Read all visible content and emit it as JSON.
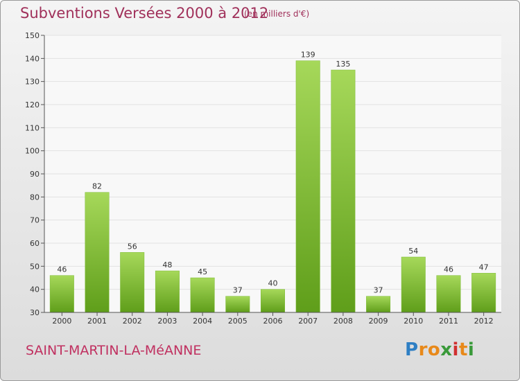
{
  "title": "Subventions Versées 2000 à 2012",
  "unit_note": "(en milliers d'€)",
  "commune": "SAINT-MARTIN-LA-MéANNE",
  "brand": {
    "letters": [
      "P",
      "r",
      "o",
      "x",
      "i",
      "t",
      "i"
    ],
    "colors": [
      "#2e7fc4",
      "#e8891a",
      "#e8891a",
      "#3a9a3a",
      "#d03030",
      "#e8891a",
      "#3a9a3a"
    ]
  },
  "colors": {
    "title": "#a0305a",
    "bar_light": "#a6d85a",
    "bar_dark": "#5f9e1a",
    "grid": "#e2e2e2",
    "plot_bg": "#f8f8f8"
  },
  "chart_data": {
    "type": "bar",
    "categories": [
      "2000",
      "2001",
      "2002",
      "2003",
      "2004",
      "2005",
      "2006",
      "2007",
      "2008",
      "2009",
      "2010",
      "2011",
      "2012"
    ],
    "values": [
      46,
      82,
      56,
      48,
      45,
      37,
      40,
      139,
      135,
      37,
      54,
      46,
      47
    ],
    "ylim": [
      30,
      150
    ],
    "yticks": [
      30,
      40,
      50,
      60,
      70,
      80,
      90,
      100,
      110,
      120,
      130,
      140,
      150
    ],
    "grid": true
  }
}
